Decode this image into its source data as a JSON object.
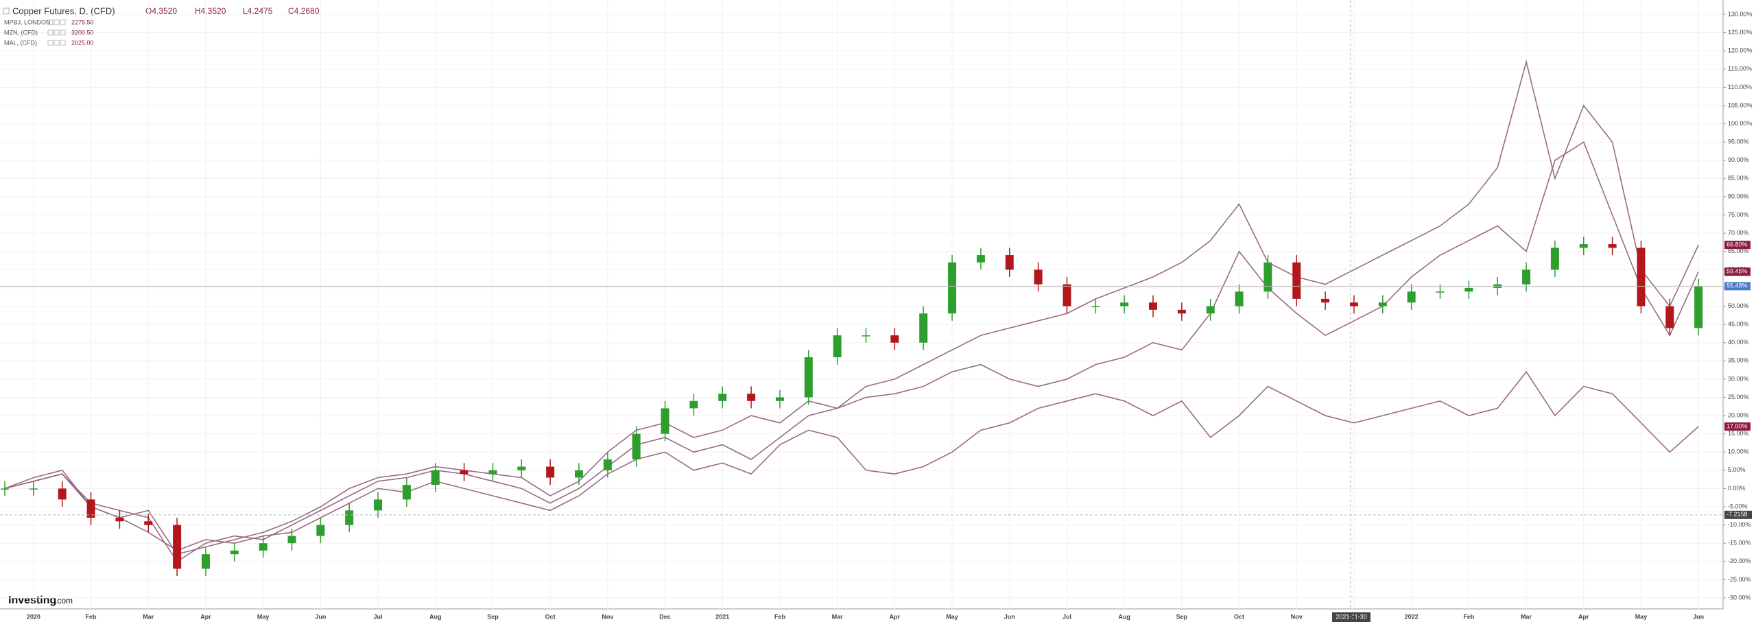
{
  "chart_data": {
    "type": "candlestick",
    "header": {
      "title": "Copper Futures, D, (CFD)",
      "open": "O4.3520",
      "high": "H4.3520",
      "low": "L4.2475",
      "close": "C4.2680"
    },
    "logo": {
      "brand": "Investing",
      "suffix": ".com"
    },
    "categories": [
      null,
      "2020",
      null,
      "Feb",
      null,
      "Mar",
      null,
      "Apr",
      null,
      "May",
      null,
      "Jun",
      null,
      "Jul",
      null,
      "Aug",
      null,
      "Sep",
      null,
      "Oct",
      null,
      "Nov",
      null,
      "Dec",
      null,
      "2021",
      null,
      "Feb",
      null,
      "Mar",
      null,
      "Apr",
      null,
      "May",
      null,
      "Jun",
      null,
      "Jul",
      null,
      "Aug",
      null,
      "Sep",
      null,
      "Oct",
      null,
      "Nov",
      null,
      "Dec",
      null,
      "2022",
      null,
      "Feb",
      null,
      "Mar",
      null,
      "Apr",
      null,
      "May",
      null,
      "Jun"
    ],
    "candles": {
      "up_color": "#2e9e2e",
      "down_color": "#b3161b",
      "open": [
        0,
        0,
        0,
        -3,
        -8,
        -9,
        -10,
        -22,
        -18,
        -17,
        -15,
        -13,
        -10,
        -6,
        -3,
        1,
        5,
        4,
        5,
        6,
        3,
        5,
        8,
        15,
        22,
        24,
        26,
        24,
        25,
        36,
        42,
        42,
        40,
        48,
        62,
        64,
        60,
        56,
        50,
        50,
        51,
        49,
        48,
        50,
        54,
        62,
        52,
        51,
        50,
        51,
        54,
        54,
        55,
        56,
        60,
        66,
        67,
        66,
        50,
        44
      ],
      "high": [
        2,
        2,
        2,
        -1,
        -6,
        -7,
        -8,
        -16,
        -15,
        -13,
        -11,
        -8,
        -4,
        -1,
        3,
        7,
        7,
        7,
        8,
        8,
        7,
        10,
        17,
        24,
        26,
        28,
        28,
        27,
        38,
        44,
        44,
        44,
        50,
        64,
        66,
        66,
        62,
        58,
        52,
        53,
        53,
        51,
        52,
        56,
        64,
        64,
        54,
        53,
        53,
        56,
        56,
        57,
        58,
        62,
        68,
        69,
        69,
        68,
        52,
        57.48
      ],
      "low": [
        -2,
        -2,
        -5,
        -10,
        -11,
        -12,
        -24,
        -24,
        -20,
        -19,
        -17,
        -15,
        -12,
        -8,
        -5,
        -1,
        2,
        2,
        3,
        1,
        1,
        3,
        6,
        13,
        20,
        22,
        22,
        22,
        23,
        34,
        40,
        38,
        38,
        46,
        60,
        58,
        54,
        48,
        48,
        48,
        47,
        46,
        46,
        48,
        52,
        50,
        49,
        48,
        48,
        49,
        52,
        52,
        53,
        54,
        58,
        64,
        64,
        48,
        42,
        42
      ],
      "close": [
        0,
        0,
        -3,
        -8,
        -9,
        -10,
        -22,
        -18,
        -17,
        -15,
        -13,
        -10,
        -6,
        -3,
        1,
        5,
        4,
        5,
        6,
        3,
        5,
        8,
        15,
        22,
        24,
        26,
        24,
        25,
        36,
        42,
        42,
        40,
        48,
        62,
        64,
        60,
        56,
        50,
        50,
        51,
        49,
        48,
        50,
        54,
        62,
        52,
        51,
        50,
        51,
        54,
        54,
        55,
        56,
        60,
        66,
        67,
        66,
        50,
        44,
        55.48
      ],
      "last_label": "55.48%",
      "last_color": "#4a78c8"
    },
    "series": [
      {
        "name": "MPBJ, LONDON",
        "price": "2275.50",
        "color": "#9a6a82",
        "last_label": "17.00%",
        "values": [
          0,
          2,
          4,
          -5,
          -8,
          -12,
          -17,
          -14,
          -15,
          -13,
          -12,
          -8,
          -4,
          0,
          -1,
          2,
          0,
          -2,
          -4,
          -6,
          -2,
          4,
          8,
          10,
          5,
          7,
          4,
          12,
          16,
          14,
          5,
          4,
          6,
          10,
          16,
          18,
          22,
          24,
          26,
          24,
          20,
          24,
          14,
          20,
          28,
          24,
          20,
          18,
          20,
          22,
          24,
          20,
          22,
          32,
          20,
          28,
          26,
          18,
          10,
          17
        ]
      },
      {
        "name": "MZN, (CFD)",
        "price": "3200.50",
        "color": "#9a6a82",
        "last_label": "59.45%",
        "values": [
          0,
          2,
          4,
          -4,
          -6,
          -8,
          -20,
          -15,
          -13,
          -14,
          -10,
          -6,
          -2,
          2,
          3,
          5,
          4,
          2,
          0,
          -4,
          0,
          6,
          12,
          14,
          10,
          12,
          8,
          14,
          20,
          22,
          25,
          26,
          28,
          32,
          34,
          30,
          28,
          30,
          34,
          36,
          40,
          38,
          48,
          65,
          55,
          48,
          42,
          46,
          50,
          58,
          64,
          68,
          72,
          65,
          90,
          95,
          75,
          55,
          42,
          59.45
        ]
      },
      {
        "name": "MAL, (CFD)",
        "price": "2625.00",
        "color": "#9a6a82",
        "last_label": "66.80%",
        "values": [
          0,
          3,
          5,
          -5,
          -8,
          -6,
          -18,
          -16,
          -14,
          -12,
          -9,
          -5,
          0,
          3,
          4,
          6,
          5,
          4,
          3,
          -2,
          2,
          10,
          16,
          18,
          14,
          16,
          20,
          18,
          24,
          22,
          28,
          30,
          34,
          38,
          42,
          44,
          46,
          48,
          52,
          55,
          58,
          62,
          68,
          78,
          62,
          58,
          56,
          60,
          64,
          68,
          72,
          78,
          88,
          117,
          85,
          105,
          95,
          60,
          50,
          66.8
        ]
      }
    ],
    "ylim": [
      -30,
      130
    ],
    "yticks": [
      {
        "value": -30,
        "label": "-30.00%"
      },
      {
        "value": -25,
        "label": "-25.00%"
      },
      {
        "value": -20,
        "label": "-20.00%"
      },
      {
        "value": -15,
        "label": "-15.00%"
      },
      {
        "value": -10,
        "label": "-10.00%"
      },
      {
        "value": -5,
        "label": "-5.00%"
      },
      {
        "value": 0,
        "label": "0.00%"
      },
      {
        "value": 5,
        "label": "5.00%"
      },
      {
        "value": 10,
        "label": "10.00%"
      },
      {
        "value": 15,
        "label": "15.00%"
      },
      {
        "value": 20,
        "label": "20.00%"
      },
      {
        "value": 25,
        "label": "25.00%"
      },
      {
        "value": 30,
        "label": "30.00%"
      },
      {
        "value": 35,
        "label": "35.00%"
      },
      {
        "value": 40,
        "label": "40.00%"
      },
      {
        "value": 45,
        "label": "45.00%"
      },
      {
        "value": 50,
        "label": "50.00%"
      },
      {
        "value": 55,
        "label": "55.00%"
      },
      {
        "value": 60,
        "label": "60.00%"
      },
      {
        "value": 65,
        "label": "65.00%"
      },
      {
        "value": 70,
        "label": "70.00%"
      },
      {
        "value": 75,
        "label": "75.00%"
      },
      {
        "value": 80,
        "label": "80.00%"
      },
      {
        "value": 85,
        "label": "85.00%"
      },
      {
        "value": 90,
        "label": "90.00%"
      },
      {
        "value": 95,
        "label": "95.00%"
      },
      {
        "value": 100,
        "label": "100.00%"
      },
      {
        "value": 105,
        "label": "105.00%"
      },
      {
        "value": 110,
        "label": "110.00%"
      },
      {
        "value": 115,
        "label": "115.00%"
      },
      {
        "value": 120,
        "label": "120.00%"
      },
      {
        "value": 125,
        "label": "125.00%"
      },
      {
        "value": 130,
        "label": "130.00%"
      }
    ],
    "grid": true,
    "crosshair": {
      "x_label": "2021-11-30",
      "y": -7.2158,
      "y_label": "-7.2158"
    }
  }
}
